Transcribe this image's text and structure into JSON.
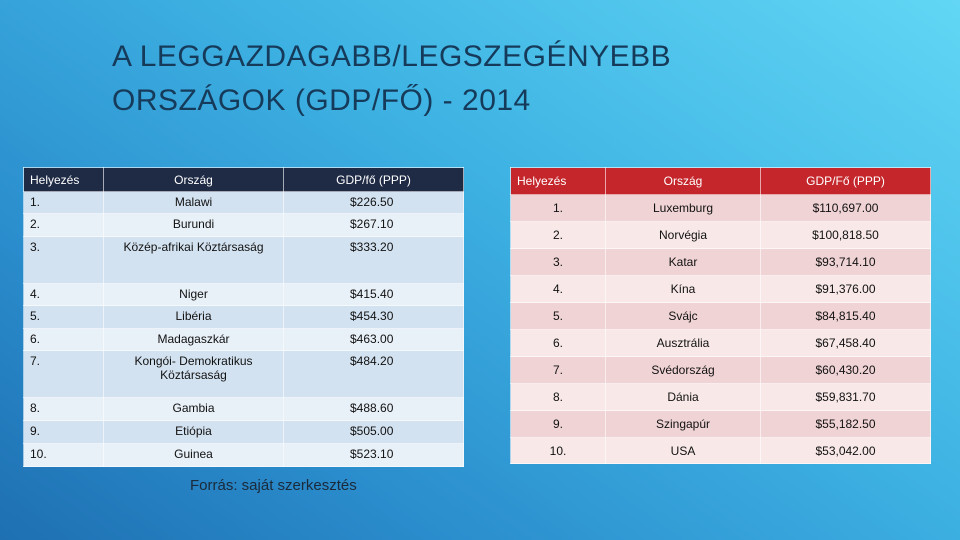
{
  "title": {
    "line1": "A LEGGAZDAGABB/LEGSZEGÉNYEBB",
    "line2": "ORSZÁGOK (GDP/FŐ) - 2014"
  },
  "left_table": {
    "header": [
      "Helyezés",
      "Ország",
      "GDP/fő (PPP)"
    ],
    "rows": [
      [
        "1.",
        "Malawi",
        "$226.50"
      ],
      [
        "2.",
        "Burundi",
        "$267.10"
      ],
      [
        "3.",
        "Közép-afrikai Köztársaság",
        "$333.20"
      ],
      [
        "4.",
        "Niger",
        "$415.40"
      ],
      [
        "5.",
        "Libéria",
        "$454.30"
      ],
      [
        "6.",
        "Madagaszkár",
        "$463.00"
      ],
      [
        "7.",
        "Kongói- Demokratikus Köztársaság",
        "$484.20"
      ],
      [
        "8.",
        "Gambia",
        "$488.60"
      ],
      [
        "9.",
        "Etiópia",
        "$505.00"
      ],
      [
        "10.",
        "Guinea",
        "$523.10"
      ]
    ]
  },
  "right_table": {
    "header": [
      "Helyezés",
      "Ország",
      "GDP/Fő (PPP)"
    ],
    "rows": [
      [
        "1.",
        "Luxemburg",
        "$110,697.00"
      ],
      [
        "2.",
        "Norvégia",
        "$100,818.50"
      ],
      [
        "3.",
        "Katar",
        "$93,714.10"
      ],
      [
        "4.",
        "Kína",
        "$91,376.00"
      ],
      [
        "5.",
        "Svájc",
        "$84,815.40"
      ],
      [
        "6.",
        "Ausztrália",
        "$67,458.40"
      ],
      [
        "7.",
        "Svédország",
        "$60,430.20"
      ],
      [
        "8.",
        "Dánia",
        "$59,831.70"
      ],
      [
        "9.",
        "Szingapúr",
        "$55,182.50"
      ],
      [
        "10.",
        "USA",
        "$53,042.00"
      ]
    ]
  },
  "source": "Forrás: saját szerkesztés"
}
